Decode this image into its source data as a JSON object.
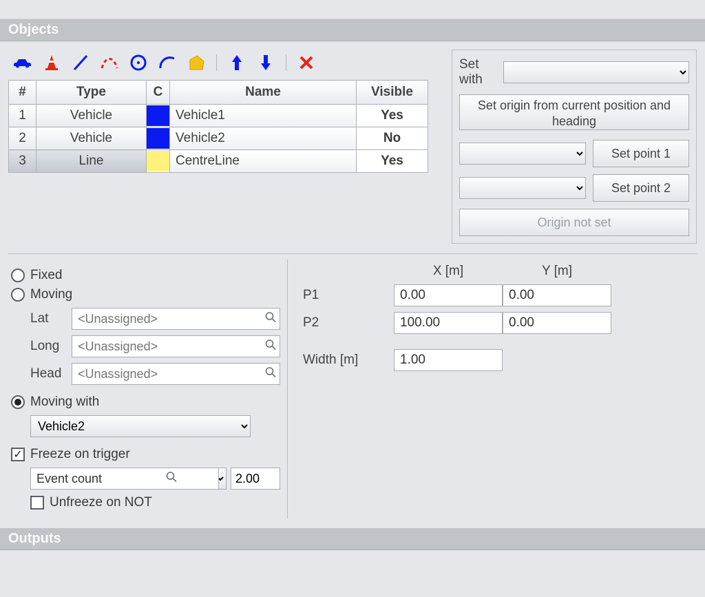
{
  "titles": {
    "objects": "Objects",
    "outputs": "Outputs"
  },
  "toolbar": {
    "icons": [
      "car",
      "cone",
      "line",
      "curve",
      "circle",
      "arc",
      "polygon",
      "up",
      "down",
      "delete"
    ],
    "colors": {
      "blue": "#0b1af0",
      "red": "#e22618",
      "yellow": "#f4c215"
    }
  },
  "table": {
    "headers": {
      "num": "#",
      "type": "Type",
      "color": "C",
      "name": "Name",
      "visible": "Visible"
    },
    "rows": [
      {
        "num": "1",
        "type": "Vehicle",
        "color": "#0b1af0",
        "name": "Vehicle1",
        "visible": "Yes",
        "visClass": "vis-yes",
        "selected": false
      },
      {
        "num": "2",
        "type": "Vehicle",
        "color": "#0b1af0",
        "name": "Vehicle2",
        "visible": "No",
        "visClass": "vis-no",
        "selected": false
      },
      {
        "num": "3",
        "type": "Line",
        "color": "#fff27a",
        "name": "CentreLine",
        "visible": "Yes",
        "visClass": "vis-yes",
        "selected": true
      }
    ]
  },
  "setwith": {
    "label": "Set with",
    "origin_button": "Set origin from current position and heading",
    "setpoint1": "Set point 1",
    "setpoint2": "Set point 2",
    "origin_status": "Origin not set"
  },
  "motion": {
    "fixed": "Fixed",
    "moving": "Moving",
    "lat": "Lat",
    "long": "Long",
    "head": "Head",
    "unassigned": "<Unassigned>",
    "moving_with": "Moving with",
    "moving_with_value": "Vehicle2",
    "freeze": "Freeze on trigger",
    "trigger_source": "Event count",
    "trigger_op": ">",
    "trigger_value": "2.00",
    "unfreeze": "Unfreeze on NOT",
    "selected": "moving_with",
    "freeze_checked": true,
    "unfreeze_checked": false
  },
  "coords": {
    "x_label": "X [m]",
    "y_label": "Y [m]",
    "p1_label": "P1",
    "p2_label": "P2",
    "width_label": "Width [m]",
    "p1": {
      "x": "0.00",
      "y": "0.00"
    },
    "p2": {
      "x": "100.00",
      "y": "0.00"
    },
    "width": "1.00"
  }
}
